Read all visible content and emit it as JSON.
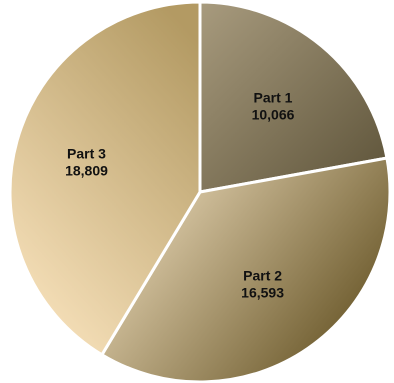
{
  "chart_data": {
    "type": "pie",
    "categories": [
      "Part 1",
      "Part 2",
      "Part 3"
    ],
    "values": [
      10066,
      16593,
      18809
    ],
    "value_labels": [
      "10,066",
      "16,593",
      "18,809"
    ],
    "colors": {
      "Part 1": [
        "#a89b7e",
        "#5c5238"
      ],
      "Part 2": [
        "#fbeacb",
        "#6c5a2c"
      ],
      "Part 3": [
        "#f9e3bd",
        "#b39a63"
      ]
    },
    "start": "12 o'clock",
    "direction": "clockwise",
    "slice_separator": "white",
    "legend": "none",
    "title": ""
  }
}
